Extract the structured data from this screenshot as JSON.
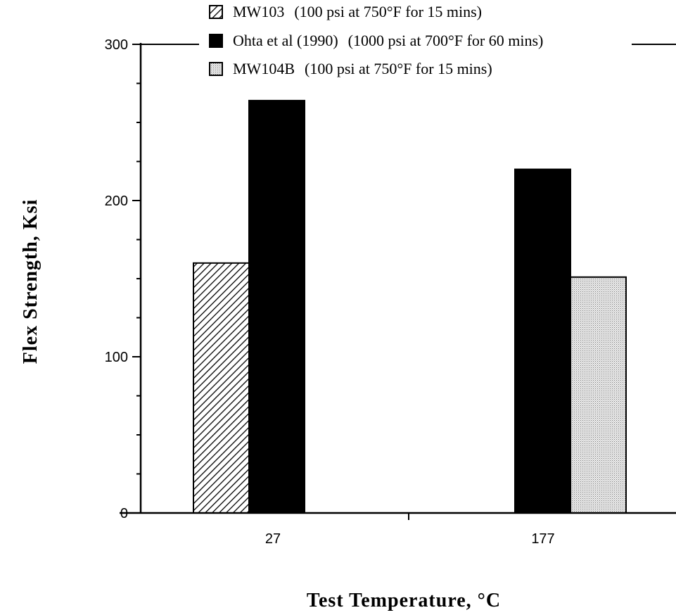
{
  "chart_data": {
    "type": "bar",
    "categories": [
      "27",
      "177"
    ],
    "series": [
      {
        "name": "MW103",
        "condition": "(100 psi at 750°F for 15 mins)",
        "values": [
          160,
          null
        ],
        "fill": "hatch"
      },
      {
        "name": "Ohta et al (1990)",
        "condition": "(1000 psi at 700°F for 60 mins)",
        "values": [
          264,
          220
        ],
        "fill": "solid"
      },
      {
        "name": "MW104B",
        "condition": "(100 psi at 750°F for 15 mins)",
        "values": [
          null,
          151
        ],
        "fill": "stipple"
      }
    ],
    "xlabel": "Test Temperature, °C",
    "ylabel": "Flex Strength, Ksi",
    "ylim": [
      0,
      300
    ],
    "yticks": [
      "0",
      "100",
      "200",
      "300"
    ],
    "grid": false,
    "legend_position": "top"
  },
  "colors": {
    "ink": "#000000",
    "stipple": "#bdbdbd",
    "background": "#ffffff"
  }
}
